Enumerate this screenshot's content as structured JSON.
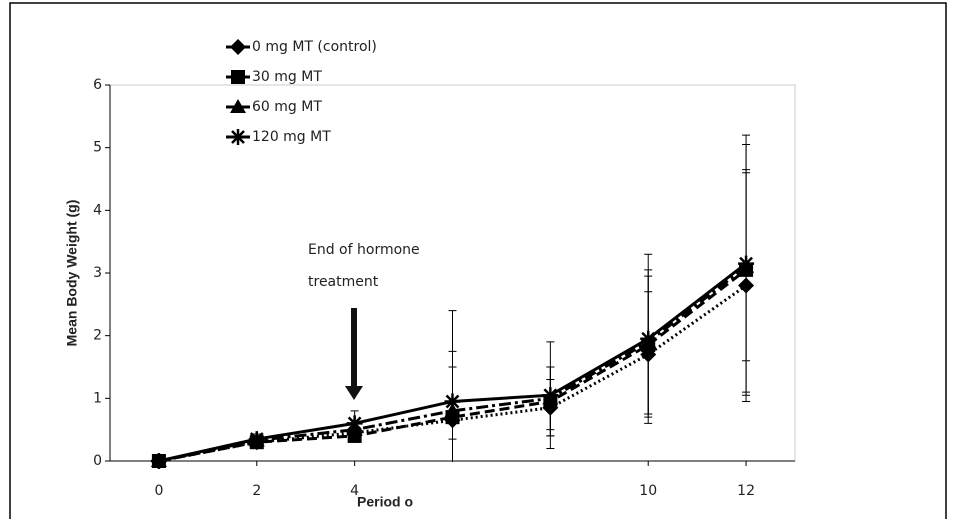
{
  "chart_data": {
    "type": "line",
    "ylabel": "Mean Body Weight (g)",
    "xlabel": "Period o",
    "annotation": [
      "End of hormone",
      "treatment"
    ],
    "xlim": [
      -1,
      13
    ],
    "xticks": [
      0,
      2,
      4,
      10,
      12
    ],
    "ylim": [
      0,
      6
    ],
    "yticks": [
      0,
      1,
      2,
      3,
      4,
      5,
      6
    ],
    "x": [
      0,
      2,
      4,
      6,
      8,
      10,
      12
    ],
    "series": [
      {
        "name": "0 mg MT (control)",
        "color": "#000000",
        "marker": "diamond",
        "dash": "dotted",
        "values": [
          0,
          0.3,
          0.45,
          0.65,
          0.85,
          1.7,
          2.8
        ],
        "errors": [
          0,
          0.05,
          0.1,
          0.3,
          0.45,
          1.0,
          1.85
        ]
      },
      {
        "name": "30 mg MT",
        "color": "#000000",
        "marker": "square",
        "dash": "dashed",
        "values": [
          0,
          0.3,
          0.4,
          0.7,
          0.95,
          1.85,
          3.05
        ],
        "errors": [
          0,
          0.05,
          0.1,
          0.8,
          0.55,
          1.1,
          2.0
        ]
      },
      {
        "name": "60 mg MT",
        "color": "#000000",
        "marker": "triangle",
        "dash": "dashdot",
        "values": [
          0,
          0.33,
          0.5,
          0.8,
          1.0,
          1.9,
          3.1
        ],
        "errors": [
          0,
          0.05,
          0.15,
          0.95,
          0.5,
          1.15,
          1.5
        ]
      },
      {
        "name": "120 mg MT",
        "color": "#000000",
        "marker": "asterisk",
        "dash": "solid",
        "values": [
          0,
          0.35,
          0.6,
          0.95,
          1.05,
          1.95,
          3.15
        ],
        "errors": [
          0,
          0.08,
          0.2,
          1.45,
          0.85,
          1.35,
          2.05
        ]
      }
    ]
  }
}
